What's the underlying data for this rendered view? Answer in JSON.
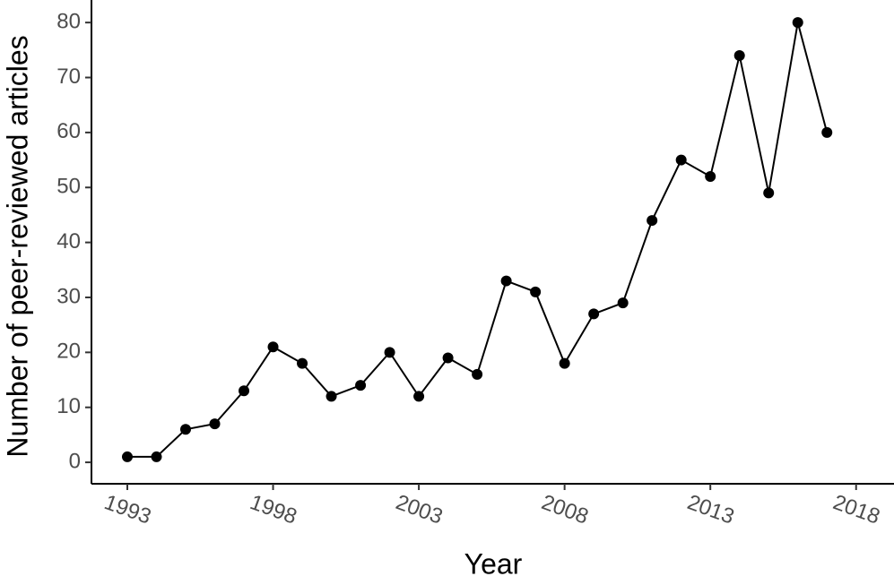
{
  "chart_data": {
    "type": "line",
    "x_label": "Year",
    "y_label": "Number of peer-reviewed articles",
    "x": [
      1993,
      1994,
      1995,
      1996,
      1997,
      1998,
      1999,
      2000,
      2001,
      2002,
      2003,
      2004,
      2005,
      2006,
      2007,
      2008,
      2009,
      2010,
      2011,
      2012,
      2013,
      2014,
      2015,
      2016,
      2017
    ],
    "series": [
      {
        "color": "#000000",
        "values": [
          1,
          1,
          6,
          7,
          13,
          21,
          18,
          12,
          14,
          20,
          12,
          19,
          16,
          33,
          31,
          18,
          27,
          29,
          44,
          55,
          52,
          74,
          49,
          80,
          60
        ]
      }
    ],
    "xlim": [
      1991.77,
      2019.3
    ],
    "xticks": [
      1993,
      1998,
      2003,
      2008,
      2013,
      2018
    ],
    "ylim": [
      -3.9,
      84.1
    ],
    "yticks": [
      0,
      10,
      20,
      30,
      40,
      50,
      60,
      70,
      80
    ],
    "grid": false
  }
}
